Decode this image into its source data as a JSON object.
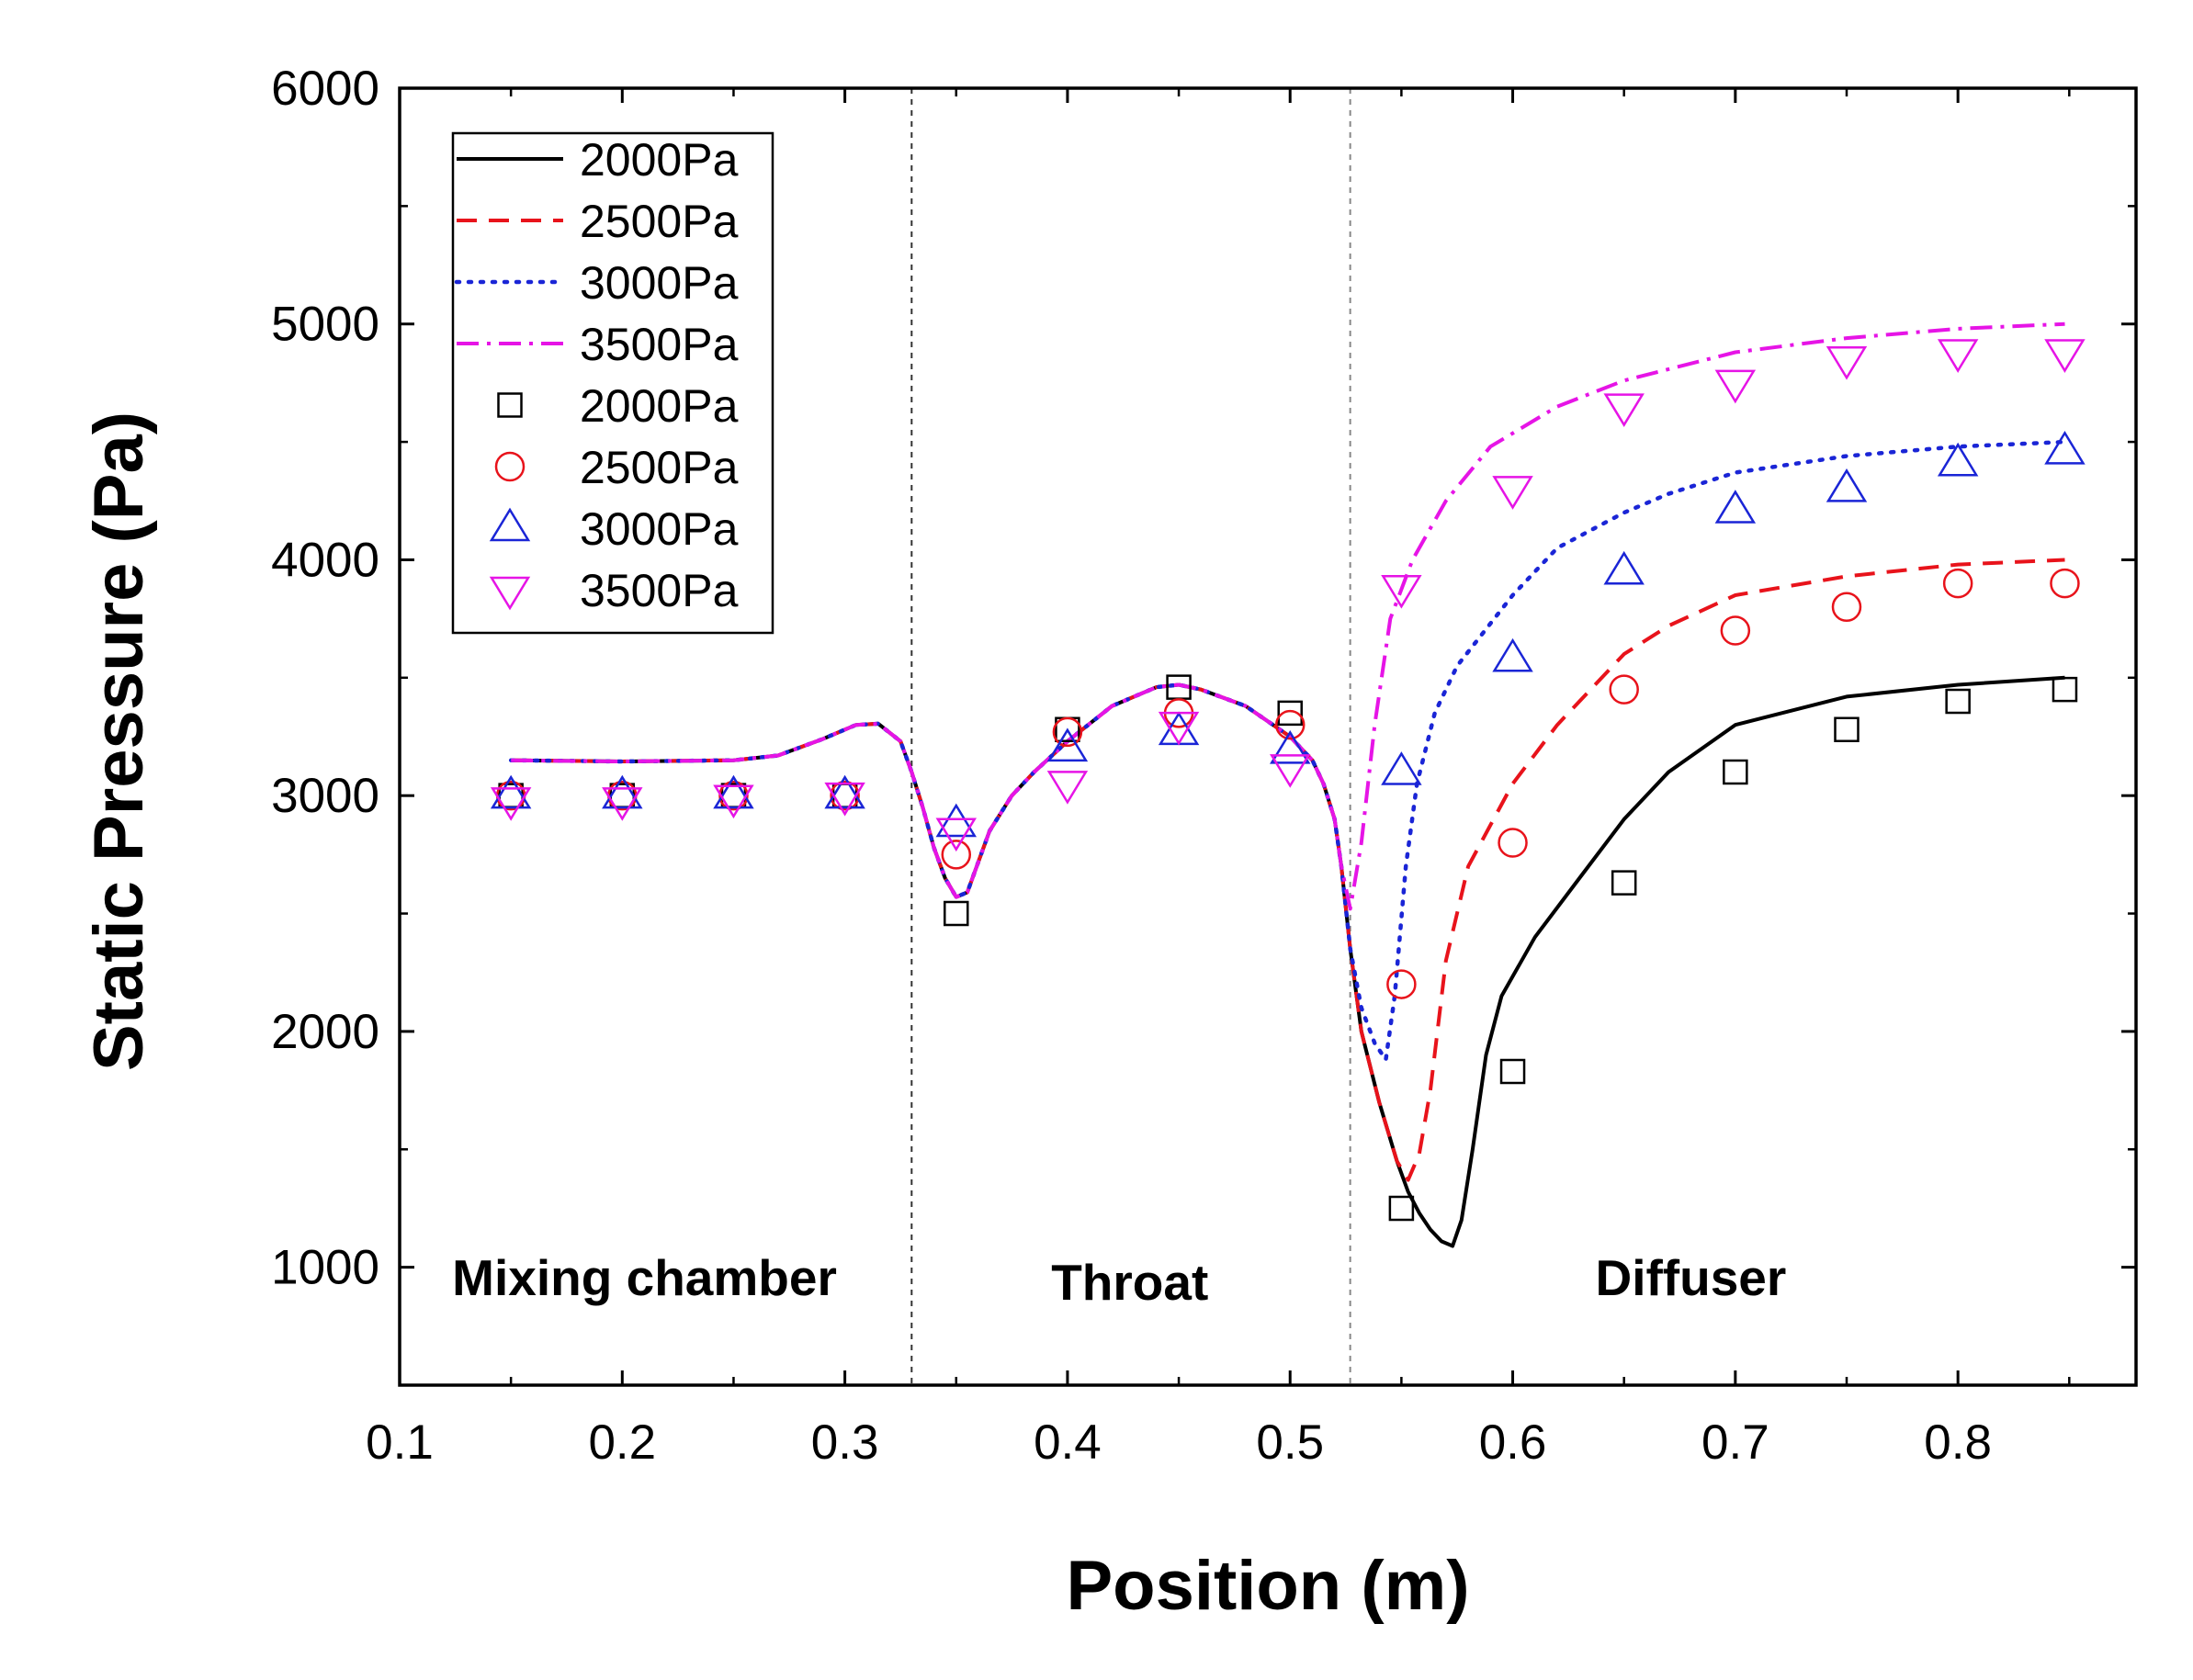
{
  "chart_data": {
    "type": "line",
    "title": "",
    "xlabel": "Position (m)",
    "ylabel": "Static Pressure (Pa)",
    "xlim": [
      0.1,
      0.88
    ],
    "ylim": [
      500,
      6000
    ],
    "x_ticks": [
      0.1,
      0.2,
      0.3,
      0.4,
      0.5,
      0.6,
      0.7,
      0.8
    ],
    "x_tick_labels": [
      "0.1",
      "0.2",
      "0.3",
      "0.4",
      "0.5",
      "0.6",
      "0.7",
      "0.8"
    ],
    "y_ticks": [
      1000,
      2000,
      3000,
      4000,
      5000,
      6000
    ],
    "y_tick_labels": [
      "1000",
      "2000",
      "3000",
      "4000",
      "5000",
      "6000"
    ],
    "grid": false,
    "legend_position": "top-left",
    "regions": [
      {
        "label": "Mixing chamber",
        "x_center": 0.21,
        "y": 960
      },
      {
        "label": "Throat",
        "x_center": 0.428,
        "y": 940
      },
      {
        "label": "Diffuser",
        "x_center": 0.68,
        "y": 960
      }
    ],
    "boundaries": [
      0.33,
      0.527
    ],
    "series": [
      {
        "name": "2000Pa",
        "kind": "line",
        "style": "solid",
        "color": "#000000",
        "x": [
          0.15,
          0.2,
          0.25,
          0.27,
          0.29,
          0.305,
          0.315,
          0.325,
          0.33,
          0.335,
          0.34,
          0.345,
          0.35,
          0.355,
          0.36,
          0.365,
          0.375,
          0.385,
          0.4,
          0.42,
          0.44,
          0.45,
          0.46,
          0.48,
          0.5,
          0.51,
          0.515,
          0.52,
          0.523,
          0.527,
          0.532,
          0.54,
          0.548,
          0.553,
          0.558,
          0.563,
          0.568,
          0.573,
          0.577,
          0.582,
          0.588,
          0.595,
          0.61,
          0.63,
          0.65,
          0.67,
          0.7,
          0.75,
          0.8,
          0.848
        ],
        "values": [
          3150,
          3145,
          3150,
          3170,
          3240,
          3300,
          3305,
          3230,
          3100,
          2950,
          2780,
          2650,
          2570,
          2590,
          2720,
          2850,
          3000,
          3100,
          3230,
          3380,
          3460,
          3470,
          3450,
          3380,
          3250,
          3150,
          3050,
          2900,
          2700,
          2350,
          2000,
          1700,
          1450,
          1320,
          1230,
          1160,
          1110,
          1090,
          1200,
          1500,
          1900,
          2150,
          2400,
          2650,
          2900,
          3100,
          3300,
          3420,
          3470,
          3500
        ]
      },
      {
        "name": "2500Pa",
        "kind": "line",
        "style": "dashed",
        "color": "#e8131b",
        "x": [
          0.15,
          0.2,
          0.25,
          0.27,
          0.29,
          0.305,
          0.315,
          0.325,
          0.33,
          0.335,
          0.34,
          0.345,
          0.35,
          0.355,
          0.36,
          0.365,
          0.375,
          0.385,
          0.4,
          0.42,
          0.44,
          0.45,
          0.46,
          0.48,
          0.5,
          0.51,
          0.515,
          0.52,
          0.523,
          0.527,
          0.532,
          0.54,
          0.548,
          0.553,
          0.558,
          0.563,
          0.57,
          0.58,
          0.6,
          0.62,
          0.65,
          0.67,
          0.7,
          0.75,
          0.8,
          0.848
        ],
        "values": [
          3150,
          3145,
          3150,
          3170,
          3240,
          3300,
          3305,
          3230,
          3100,
          2950,
          2780,
          2650,
          2570,
          2590,
          2720,
          2850,
          3000,
          3100,
          3230,
          3380,
          3460,
          3470,
          3450,
          3380,
          3250,
          3150,
          3050,
          2900,
          2700,
          2350,
          2000,
          1700,
          1450,
          1370,
          1480,
          1750,
          2300,
          2700,
          3050,
          3300,
          3600,
          3720,
          3850,
          3930,
          3980,
          4000
        ]
      },
      {
        "name": "3000Pa",
        "kind": "line",
        "style": "dotted",
        "color": "#1a25d6",
        "x": [
          0.15,
          0.2,
          0.25,
          0.27,
          0.29,
          0.305,
          0.315,
          0.325,
          0.33,
          0.335,
          0.34,
          0.345,
          0.35,
          0.355,
          0.36,
          0.365,
          0.375,
          0.385,
          0.4,
          0.42,
          0.44,
          0.45,
          0.46,
          0.48,
          0.5,
          0.51,
          0.515,
          0.52,
          0.523,
          0.527,
          0.532,
          0.538,
          0.543,
          0.547,
          0.552,
          0.557,
          0.565,
          0.575,
          0.6,
          0.62,
          0.65,
          0.67,
          0.7,
          0.75,
          0.8,
          0.848
        ],
        "values": [
          3150,
          3145,
          3150,
          3170,
          3240,
          3300,
          3305,
          3230,
          3100,
          2950,
          2780,
          2650,
          2570,
          2590,
          2720,
          2850,
          3000,
          3100,
          3230,
          3380,
          3460,
          3470,
          3450,
          3380,
          3250,
          3150,
          3050,
          2900,
          2700,
          2350,
          2100,
          1950,
          1880,
          2150,
          2700,
          3050,
          3350,
          3550,
          3850,
          4050,
          4200,
          4280,
          4370,
          4440,
          4480,
          4500
        ]
      },
      {
        "name": "3500Pa",
        "kind": "line",
        "style": "dashdot",
        "color": "#e614e6",
        "x": [
          0.15,
          0.2,
          0.25,
          0.27,
          0.29,
          0.305,
          0.315,
          0.325,
          0.33,
          0.335,
          0.34,
          0.345,
          0.35,
          0.355,
          0.36,
          0.365,
          0.375,
          0.385,
          0.4,
          0.42,
          0.44,
          0.45,
          0.46,
          0.48,
          0.5,
          0.51,
          0.515,
          0.52,
          0.523,
          0.527,
          0.532,
          0.538,
          0.545,
          0.555,
          0.57,
          0.59,
          0.62,
          0.65,
          0.7,
          0.75,
          0.8,
          0.848
        ],
        "values": [
          3150,
          3145,
          3150,
          3170,
          3240,
          3300,
          3305,
          3230,
          3100,
          2950,
          2780,
          2650,
          2570,
          2590,
          2720,
          2850,
          3000,
          3100,
          3230,
          3380,
          3460,
          3470,
          3450,
          3380,
          3250,
          3150,
          3050,
          2900,
          2700,
          2520,
          2800,
          3300,
          3750,
          4000,
          4250,
          4480,
          4650,
          4760,
          4880,
          4940,
          4980,
          5000
        ]
      },
      {
        "name": "2000Pa",
        "kind": "marker",
        "marker": "square",
        "color": "#000000",
        "x": [
          0.15,
          0.2,
          0.25,
          0.3,
          0.35,
          0.4,
          0.45,
          0.5,
          0.55,
          0.6,
          0.65,
          0.7,
          0.75,
          0.8,
          0.848
        ],
        "values": [
          3000,
          3000,
          3000,
          3000,
          2500,
          3280,
          3460,
          3350,
          1250,
          1830,
          2630,
          3100,
          3280,
          3400,
          3450
        ]
      },
      {
        "name": "2500Pa",
        "kind": "marker",
        "marker": "circle",
        "color": "#e8131b",
        "x": [
          0.15,
          0.2,
          0.25,
          0.3,
          0.35,
          0.4,
          0.45,
          0.5,
          0.55,
          0.6,
          0.65,
          0.7,
          0.75,
          0.8,
          0.848
        ],
        "values": [
          3000,
          3000,
          3000,
          3000,
          2750,
          3270,
          3350,
          3300,
          2200,
          2800,
          3450,
          3700,
          3800,
          3900,
          3900
        ]
      },
      {
        "name": "3000Pa",
        "kind": "marker",
        "marker": "triangle-up",
        "color": "#1a25d6",
        "x": [
          0.15,
          0.2,
          0.25,
          0.3,
          0.35,
          0.4,
          0.45,
          0.5,
          0.55,
          0.6,
          0.65,
          0.7,
          0.75,
          0.8,
          0.848
        ],
        "values": [
          3000,
          3000,
          3000,
          3000,
          2880,
          3200,
          3270,
          3190,
          3100,
          3580,
          3950,
          4210,
          4300,
          4410,
          4460
        ]
      },
      {
        "name": "3500Pa",
        "kind": "marker",
        "marker": "triangle-down",
        "color": "#e614e6",
        "x": [
          0.15,
          0.2,
          0.25,
          0.3,
          0.35,
          0.4,
          0.45,
          0.5,
          0.55,
          0.6,
          0.65,
          0.7,
          0.75,
          0.8,
          0.848
        ],
        "values": [
          2980,
          2980,
          2990,
          3000,
          2850,
          3050,
          3300,
          3120,
          3880,
          4300,
          4650,
          4750,
          4850,
          4880,
          4880
        ]
      }
    ]
  }
}
